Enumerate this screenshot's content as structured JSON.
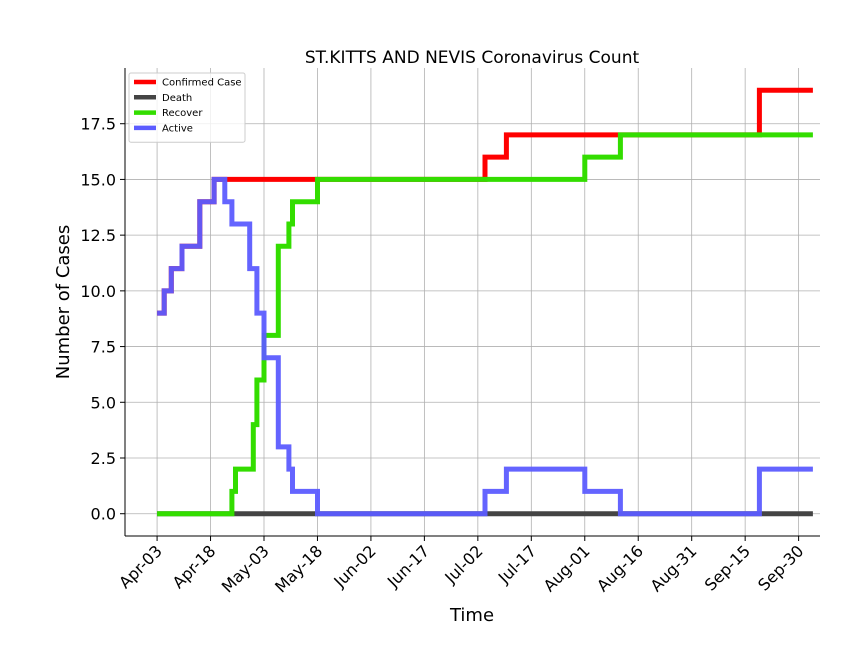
{
  "chart_data": {
    "type": "line",
    "title": "ST.KITTS AND NEVIS Coronavirus Count",
    "xlabel": "Time",
    "ylabel": "Number of Cases",
    "x_ticks": [
      "Apr-03",
      "Apr-18",
      "May-03",
      "May-18",
      "Jun-02",
      "Jun-17",
      "Jul-02",
      "Jul-17",
      "Aug-01",
      "Aug-16",
      "Aug-31",
      "Sep-15",
      "Sep-30"
    ],
    "x_start": "2020-03-25",
    "x_end": "2020-10-06",
    "y_ticks": [
      "0.0",
      "2.5",
      "5.0",
      "7.5",
      "10.0",
      "12.5",
      "15.0",
      "17.5"
    ],
    "ylim": [
      -1,
      20
    ],
    "grid": true,
    "legend_position": "top-left",
    "series": [
      {
        "name": "Confirmed Case",
        "color": "#ff0000",
        "points": [
          [
            "2020-04-03",
            9
          ],
          [
            "2020-04-05",
            10
          ],
          [
            "2020-04-07",
            11
          ],
          [
            "2020-04-10",
            12
          ],
          [
            "2020-04-15",
            14
          ],
          [
            "2020-04-19",
            15
          ],
          [
            "2020-07-04",
            16
          ],
          [
            "2020-07-10",
            17
          ],
          [
            "2020-09-19",
            19
          ],
          [
            "2020-10-04",
            19
          ]
        ]
      },
      {
        "name": "Death",
        "color": "#444444",
        "points": [
          [
            "2020-04-03",
            0
          ],
          [
            "2020-10-04",
            0
          ]
        ]
      },
      {
        "name": "Recover",
        "color": "#33dd00",
        "points": [
          [
            "2020-04-03",
            0
          ],
          [
            "2020-04-23",
            0
          ],
          [
            "2020-04-24",
            1
          ],
          [
            "2020-04-25",
            2
          ],
          [
            "2020-04-30",
            4
          ],
          [
            "2020-05-01",
            6
          ],
          [
            "2020-05-03",
            8
          ],
          [
            "2020-05-07",
            12
          ],
          [
            "2020-05-10",
            13
          ],
          [
            "2020-05-11",
            14
          ],
          [
            "2020-05-18",
            15
          ],
          [
            "2020-07-22",
            15
          ],
          [
            "2020-08-01",
            16
          ],
          [
            "2020-08-11",
            17
          ],
          [
            "2020-10-04",
            17
          ]
        ]
      },
      {
        "name": "Active",
        "color": "#5c5cff",
        "points": [
          [
            "2020-04-03",
            9
          ],
          [
            "2020-04-05",
            10
          ],
          [
            "2020-04-07",
            11
          ],
          [
            "2020-04-10",
            12
          ],
          [
            "2020-04-15",
            14
          ],
          [
            "2020-04-19",
            15
          ],
          [
            "2020-04-22",
            14
          ],
          [
            "2020-04-24",
            13
          ],
          [
            "2020-04-29",
            11
          ],
          [
            "2020-05-01",
            9
          ],
          [
            "2020-05-03",
            7
          ],
          [
            "2020-05-07",
            3
          ],
          [
            "2020-05-10",
            2
          ],
          [
            "2020-05-11",
            1
          ],
          [
            "2020-05-18",
            0
          ],
          [
            "2020-07-04",
            0
          ],
          [
            "2020-07-04",
            1
          ],
          [
            "2020-07-10",
            2
          ],
          [
            "2020-08-01",
            2
          ],
          [
            "2020-08-01",
            1
          ],
          [
            "2020-08-11",
            1
          ],
          [
            "2020-08-11",
            0
          ],
          [
            "2020-09-19",
            0
          ],
          [
            "2020-09-19",
            2
          ],
          [
            "2020-10-04",
            2
          ]
        ]
      }
    ]
  }
}
